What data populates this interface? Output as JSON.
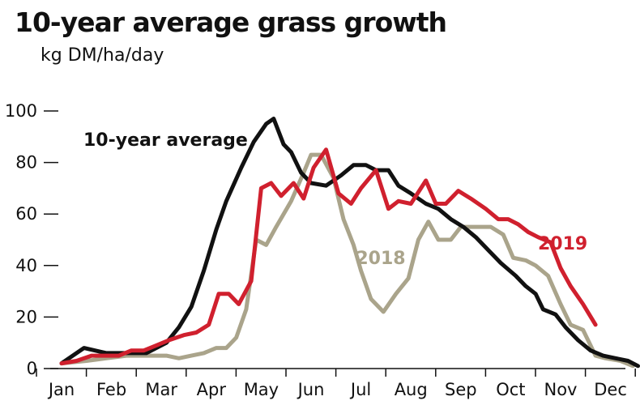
{
  "chart_data": {
    "type": "line",
    "title": "10-year average grass growth",
    "subtitle": "kg DM/ha/day",
    "xlabel": "",
    "ylabel": "",
    "ylim": [
      0,
      100
    ],
    "yticks": [
      0,
      20,
      40,
      60,
      80,
      100
    ],
    "categories": [
      "Jan",
      "Feb",
      "Mar",
      "Apr",
      "May",
      "Jun",
      "Jul",
      "Aug",
      "Sep",
      "Oct",
      "Nov",
      "Dec"
    ],
    "grid": false,
    "series": [
      {
        "name": "10-year average",
        "color": "#111111",
        "label_position": "upper-left",
        "points": [
          [
            0.0,
            2
          ],
          [
            0.45,
            8
          ],
          [
            0.9,
            6
          ],
          [
            1.3,
            6
          ],
          [
            1.7,
            6
          ],
          [
            2.1,
            10
          ],
          [
            2.35,
            16
          ],
          [
            2.6,
            24
          ],
          [
            2.85,
            38
          ],
          [
            3.1,
            54
          ],
          [
            3.3,
            65
          ],
          [
            3.6,
            78
          ],
          [
            3.85,
            88
          ],
          [
            4.1,
            95
          ],
          [
            4.25,
            97
          ],
          [
            4.45,
            87
          ],
          [
            4.6,
            84
          ],
          [
            4.8,
            76
          ],
          [
            5.0,
            72
          ],
          [
            5.3,
            71
          ],
          [
            5.6,
            75
          ],
          [
            5.85,
            79
          ],
          [
            6.1,
            79
          ],
          [
            6.3,
            77
          ],
          [
            6.55,
            77
          ],
          [
            6.75,
            71
          ],
          [
            7.0,
            68
          ],
          [
            7.3,
            64
          ],
          [
            7.55,
            62
          ],
          [
            7.8,
            58
          ],
          [
            8.05,
            55
          ],
          [
            8.3,
            51
          ],
          [
            8.55,
            46
          ],
          [
            8.8,
            41
          ],
          [
            9.1,
            36
          ],
          [
            9.3,
            32
          ],
          [
            9.5,
            29
          ],
          [
            9.65,
            23
          ],
          [
            9.9,
            21
          ],
          [
            10.1,
            16
          ],
          [
            10.35,
            11
          ],
          [
            10.6,
            7
          ],
          [
            10.85,
            5
          ],
          [
            11.1,
            4
          ],
          [
            11.35,
            3
          ],
          [
            11.55,
            1
          ]
        ]
      },
      {
        "name": "2018",
        "color": "#aaa48b",
        "label_position": "center",
        "points": [
          [
            0.0,
            2
          ],
          [
            0.5,
            3
          ],
          [
            0.9,
            4
          ],
          [
            1.3,
            5
          ],
          [
            1.7,
            5
          ],
          [
            2.1,
            5
          ],
          [
            2.35,
            4
          ],
          [
            2.6,
            5
          ],
          [
            2.85,
            6
          ],
          [
            3.1,
            8
          ],
          [
            3.3,
            8
          ],
          [
            3.5,
            12
          ],
          [
            3.7,
            23
          ],
          [
            3.9,
            50
          ],
          [
            4.1,
            48
          ],
          [
            4.3,
            55
          ],
          [
            4.6,
            65
          ],
          [
            4.85,
            76
          ],
          [
            5.0,
            83
          ],
          [
            5.2,
            83
          ],
          [
            5.45,
            74
          ],
          [
            5.65,
            58
          ],
          [
            5.85,
            48
          ],
          [
            6.0,
            38
          ],
          [
            6.2,
            27
          ],
          [
            6.45,
            22
          ],
          [
            6.7,
            29
          ],
          [
            6.95,
            35
          ],
          [
            7.15,
            50
          ],
          [
            7.35,
            57
          ],
          [
            7.55,
            50
          ],
          [
            7.8,
            50
          ],
          [
            8.0,
            55
          ],
          [
            8.35,
            55
          ],
          [
            8.6,
            55
          ],
          [
            8.85,
            52
          ],
          [
            9.05,
            43
          ],
          [
            9.3,
            42
          ],
          [
            9.5,
            40
          ],
          [
            9.75,
            36
          ],
          [
            10.0,
            25
          ],
          [
            10.2,
            17
          ],
          [
            10.45,
            15
          ],
          [
            10.7,
            5
          ],
          [
            10.9,
            4
          ],
          [
            11.2,
            3
          ],
          [
            11.45,
            1
          ]
        ]
      },
      {
        "name": "2019",
        "color": "#d0202e",
        "label_position": "right",
        "points": [
          [
            0.0,
            2
          ],
          [
            0.3,
            3
          ],
          [
            0.6,
            5
          ],
          [
            0.9,
            5
          ],
          [
            1.15,
            5
          ],
          [
            1.4,
            7
          ],
          [
            1.65,
            7
          ],
          [
            1.9,
            9
          ],
          [
            2.15,
            11
          ],
          [
            2.45,
            13
          ],
          [
            2.7,
            14
          ],
          [
            2.95,
            17
          ],
          [
            3.15,
            29
          ],
          [
            3.35,
            29
          ],
          [
            3.55,
            25
          ],
          [
            3.8,
            34
          ],
          [
            4.0,
            70
          ],
          [
            4.2,
            72
          ],
          [
            4.4,
            67
          ],
          [
            4.65,
            72
          ],
          [
            4.85,
            66
          ],
          [
            5.05,
            78
          ],
          [
            5.3,
            85
          ],
          [
            5.55,
            68
          ],
          [
            5.8,
            64
          ],
          [
            6.0,
            70
          ],
          [
            6.3,
            77
          ],
          [
            6.55,
            62
          ],
          [
            6.75,
            65
          ],
          [
            7.0,
            64
          ],
          [
            7.3,
            73
          ],
          [
            7.5,
            64
          ],
          [
            7.7,
            64
          ],
          [
            7.95,
            69
          ],
          [
            8.2,
            66
          ],
          [
            8.5,
            62
          ],
          [
            8.75,
            58
          ],
          [
            8.95,
            58
          ],
          [
            9.15,
            56
          ],
          [
            9.35,
            53
          ],
          [
            9.55,
            51
          ],
          [
            9.8,
            49
          ],
          [
            10.0,
            39
          ],
          [
            10.2,
            32
          ],
          [
            10.45,
            25
          ],
          [
            10.7,
            17
          ]
        ]
      }
    ]
  }
}
